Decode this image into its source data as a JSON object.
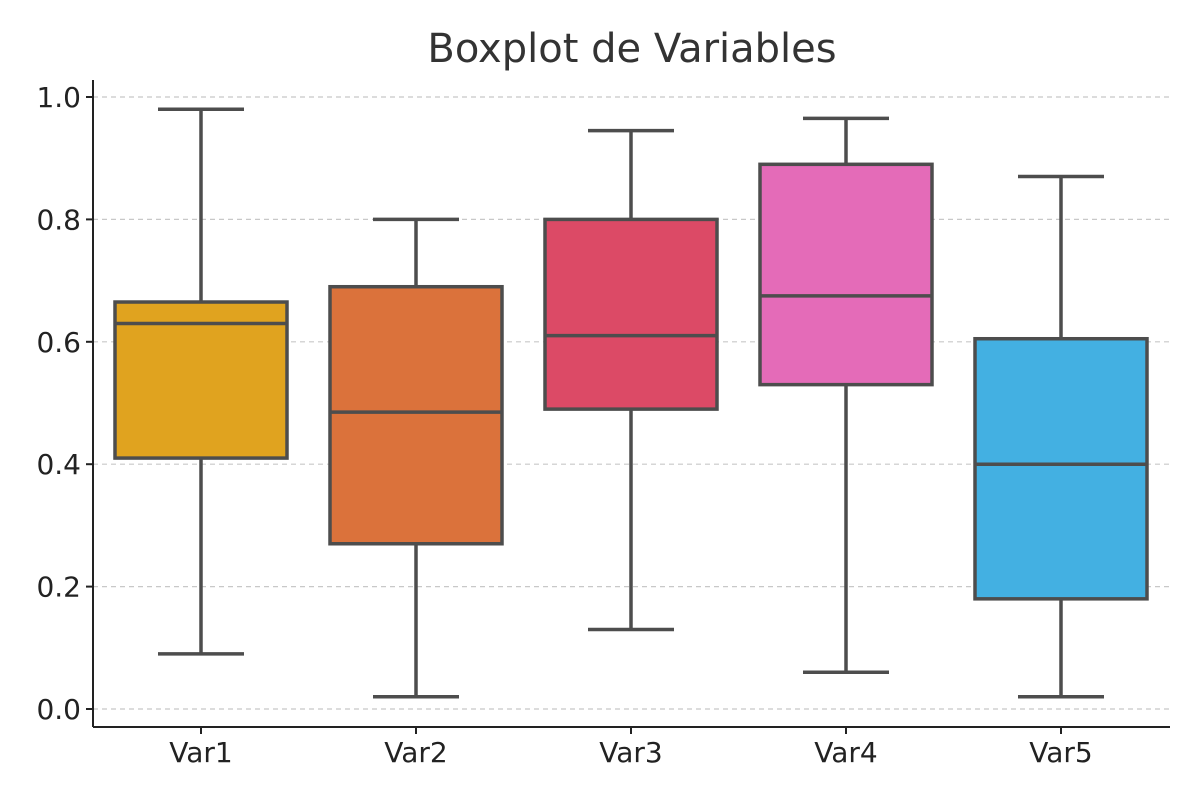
{
  "chart_data": {
    "type": "boxplot",
    "title": "Boxplot de Variables",
    "xlabel": "",
    "ylabel": "",
    "ylim": [
      -0.03,
      1.03
    ],
    "yticks": [
      "0.0",
      "0.2",
      "0.4",
      "0.6",
      "0.8",
      "1.0"
    ],
    "grid": "y-dashed",
    "categories": [
      "Var1",
      "Var2",
      "Var3",
      "Var4",
      "Var5"
    ],
    "boxes": [
      {
        "name": "Var1",
        "min": 0.09,
        "q1": 0.41,
        "median": 0.63,
        "q3": 0.665,
        "max": 0.98,
        "color": "#E0A31F"
      },
      {
        "name": "Var2",
        "min": 0.02,
        "q1": 0.27,
        "median": 0.485,
        "q3": 0.69,
        "max": 0.8,
        "color": "#DB723B"
      },
      {
        "name": "Var3",
        "min": 0.13,
        "q1": 0.49,
        "median": 0.61,
        "q3": 0.8,
        "max": 0.945,
        "color": "#DC4A66"
      },
      {
        "name": "Var4",
        "min": 0.06,
        "q1": 0.53,
        "median": 0.675,
        "q3": 0.89,
        "max": 0.965,
        "color": "#E46BB8"
      },
      {
        "name": "Var5",
        "min": 0.02,
        "q1": 0.18,
        "median": 0.4,
        "q3": 0.605,
        "max": 0.87,
        "color": "#43B0E2"
      }
    ]
  }
}
